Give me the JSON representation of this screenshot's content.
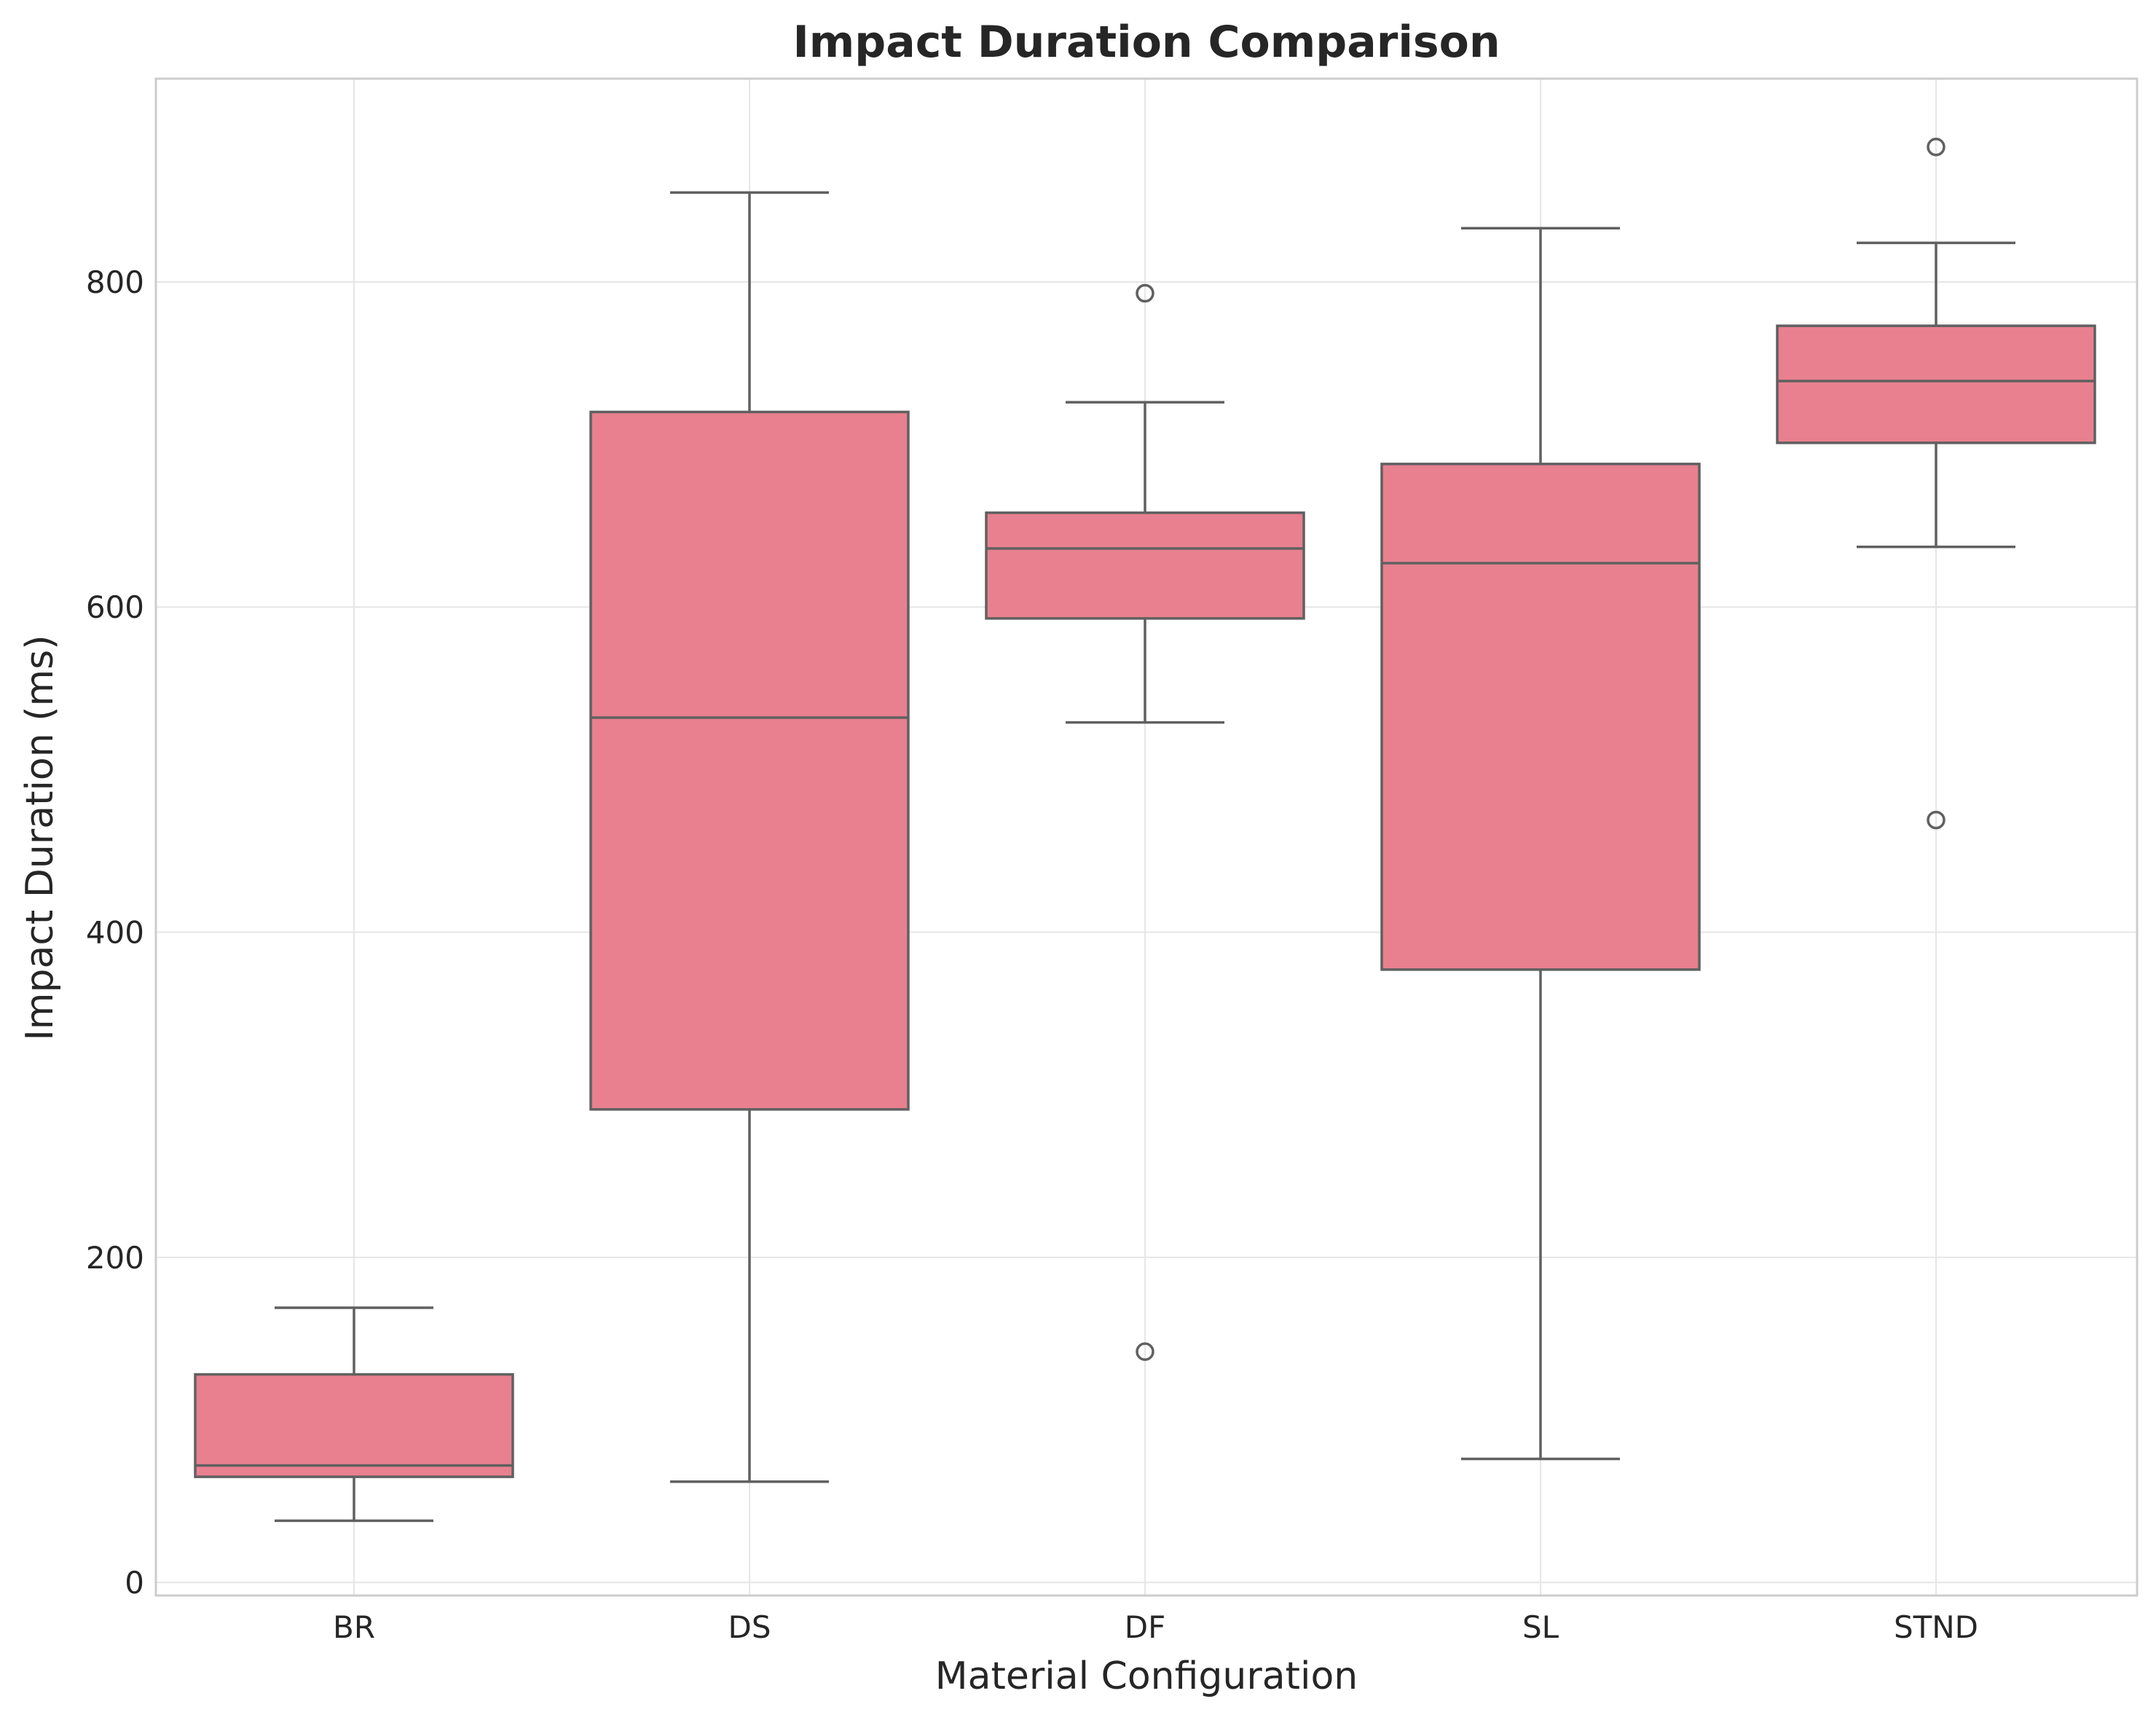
{
  "chart_data": {
    "type": "box",
    "title": "Impact Duration Comparison",
    "xlabel": "Material Configuration",
    "ylabel": "Impact Duration (ms)",
    "categories": [
      "BR",
      "DS",
      "DF",
      "SL",
      "STND"
    ],
    "ylim": [
      -8,
      925
    ],
    "yticks": [
      0,
      200,
      400,
      600,
      800
    ],
    "grid": true,
    "box_color": "#e8808f",
    "line_color": "#606060",
    "boxes": [
      {
        "category": "BR",
        "whisker_low": 38,
        "q1": 65,
        "median": 72,
        "q3": 128,
        "whisker_high": 169,
        "outliers": []
      },
      {
        "category": "DS",
        "whisker_low": 62,
        "q1": 291,
        "median": 532,
        "q3": 720,
        "whisker_high": 855,
        "outliers": []
      },
      {
        "category": "DF",
        "whisker_low": 529,
        "q1": 593,
        "median": 636,
        "q3": 658,
        "whisker_high": 726,
        "outliers": [
          793,
          142
        ]
      },
      {
        "category": "SL",
        "whisker_low": 76,
        "q1": 377,
        "median": 627,
        "q3": 688,
        "whisker_high": 833,
        "outliers": []
      },
      {
        "category": "STND",
        "whisker_low": 637,
        "q1": 701,
        "median": 739,
        "q3": 773,
        "whisker_high": 824,
        "outliers": [
          883,
          469
        ]
      }
    ]
  }
}
